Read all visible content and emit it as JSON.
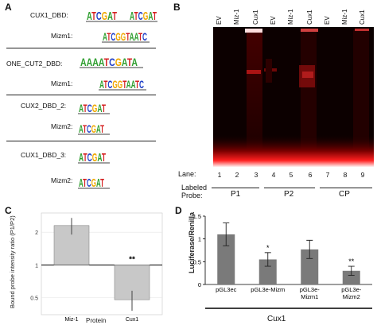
{
  "panelA": {
    "letter": "A",
    "motifs": [
      {
        "label": "CUX1_DBD:",
        "seq1": "ATCGAT",
        "seq2": "ATCGAT"
      },
      {
        "label": "Mizm1:",
        "seq1": "ATCGGTAATC"
      },
      {
        "label": "ONE_CUT2_DBD:",
        "seq1": "AAAATCGATA"
      },
      {
        "label": "Mizm1:",
        "seq1": "ATCGGTAATC"
      },
      {
        "label": "CUX2_DBD_2:",
        "seq1": "ATCGAT"
      },
      {
        "label": "Mizm2:",
        "seq1": "ATCGAT"
      },
      {
        "label": "CUX1_DBD_3:",
        "seq1": "ATCGAT"
      },
      {
        "label": "Mizm2:",
        "seq1": "ATCGAT"
      }
    ]
  },
  "panelB": {
    "letter": "B",
    "lane_tops": [
      "EV",
      "Miz-1",
      "Cux1",
      "EV",
      "Miz-1",
      "Cux1",
      "EV",
      "Miz-1",
      "Cux1"
    ],
    "lane_label": "Lane:",
    "lane_numbers": [
      "1",
      "2",
      "3",
      "4",
      "5",
      "6",
      "7",
      "8",
      "9"
    ],
    "probe_label_1": "Labeled",
    "probe_label_2": "Probe:",
    "probes": [
      "P1",
      "P2",
      "CP"
    ]
  },
  "panelC": {
    "letter": "C",
    "chart_data": {
      "type": "bar",
      "categories": [
        "Miz-1",
        "Cux1"
      ],
      "values": [
        2.3,
        0.48
      ],
      "error": [
        0.4,
        0.1
      ],
      "baseline": 1,
      "ylabel": "Bound probe intensity ratio (P1/P2)",
      "xlabel": "Protein",
      "yticks": [
        "2",
        "1",
        "0.5"
      ],
      "significance": [
        "",
        "**"
      ],
      "bar_color": "#c8c8c8",
      "scale": "log"
    }
  },
  "panelD": {
    "letter": "D",
    "chart_data": {
      "type": "bar",
      "categories": [
        "pGL3ec",
        "pGL3e-Mizm",
        "pGL3e-\nMizm1",
        "pGL3e-\nMizm2"
      ],
      "values": [
        1.1,
        0.55,
        0.77,
        0.3
      ],
      "error": [
        0.25,
        0.15,
        0.2,
        0.1
      ],
      "ylabel": "Luciferase/Renilla",
      "group_label": "Cux1",
      "yticks": [
        "0",
        "0.5",
        "1",
        "1.5"
      ],
      "ylim": [
        0,
        1.5
      ],
      "significance": [
        "",
        "*",
        "",
        "**"
      ],
      "bar_color": "#7a7a7a"
    }
  }
}
